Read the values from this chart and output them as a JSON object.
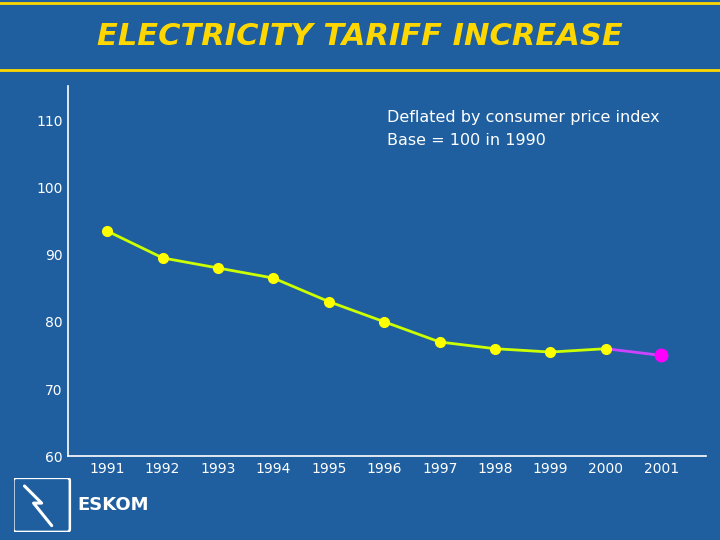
{
  "title": "ELECTRICITY TARIFF INCREASE",
  "title_color": "#FFD700",
  "title_fontsize": 22,
  "subtitle_line1": "Deflated by consumer price index",
  "subtitle_line2": "Base = 100 in 1990",
  "subtitle_color": "#FFFFFF",
  "subtitle_fontsize": 11.5,
  "bg_color": "#1F5F9F",
  "plot_bg_color": "#1F5F9F",
  "years_main": [
    1991,
    1992,
    1993,
    1994,
    1995,
    1996,
    1997,
    1998,
    1999,
    2000
  ],
  "values_main": [
    93.5,
    89.5,
    88.0,
    86.5,
    83.0,
    80.0,
    77.0,
    76.0,
    75.5,
    76.0
  ],
  "year_2001": 2001,
  "value_2001": 75.0,
  "line_color_main": "#CCFF00",
  "line_color_segment": "#CC44FF",
  "marker_color_main": "#FFFF00",
  "marker_color_2001": "#FF00FF",
  "line_width": 2.0,
  "marker_size": 7,
  "ylim": [
    60,
    115
  ],
  "yticks": [
    60,
    70,
    80,
    90,
    100,
    110
  ],
  "xlim": [
    1990.3,
    2001.8
  ],
  "xticks": [
    1991,
    1992,
    1993,
    1994,
    1995,
    1996,
    1997,
    1998,
    1999,
    2000,
    2001
  ],
  "axis_color": "#FFFFFF",
  "tick_color": "#FFFFFF",
  "tick_fontsize": 10,
  "gold_line_color": "#FFD700",
  "title_bg_color": "#1F5F9F"
}
